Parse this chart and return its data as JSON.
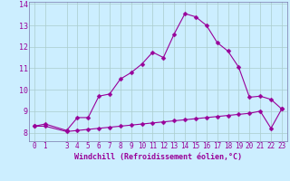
{
  "xlabel": "Windchill (Refroidissement éolien,°C)",
  "bg_color": "#cceeff",
  "grid_color": "#aacccc",
  "line_color": "#990099",
  "spine_color": "#7777aa",
  "xlim": [
    -0.5,
    23.5
  ],
  "ylim": [
    7.6,
    14.1
  ],
  "yticks": [
    8,
    9,
    10,
    11,
    12,
    13,
    14
  ],
  "xticks": [
    0,
    1,
    3,
    4,
    5,
    6,
    7,
    8,
    9,
    10,
    11,
    12,
    13,
    14,
    15,
    16,
    17,
    18,
    19,
    20,
    21,
    22,
    23
  ],
  "hours": [
    0,
    1,
    3,
    4,
    5,
    6,
    7,
    8,
    9,
    10,
    11,
    12,
    13,
    14,
    15,
    16,
    17,
    18,
    19,
    20,
    21,
    22,
    23
  ],
  "temp_line1": [
    8.3,
    8.4,
    8.1,
    8.7,
    8.7,
    9.7,
    9.8,
    10.5,
    10.8,
    11.2,
    11.75,
    11.5,
    12.6,
    13.55,
    13.4,
    13.0,
    12.2,
    11.8,
    11.05,
    9.65,
    9.7,
    9.55,
    9.1
  ],
  "temp_line2": [
    8.3,
    8.3,
    8.05,
    8.1,
    8.15,
    8.2,
    8.25,
    8.3,
    8.35,
    8.4,
    8.45,
    8.5,
    8.55,
    8.6,
    8.65,
    8.7,
    8.75,
    8.8,
    8.85,
    8.9,
    9.0,
    8.2,
    9.1
  ],
  "markersize": 2.5,
  "linewidth": 0.8,
  "tick_labelsize": 5.5,
  "xlabel_fontsize": 6.0
}
